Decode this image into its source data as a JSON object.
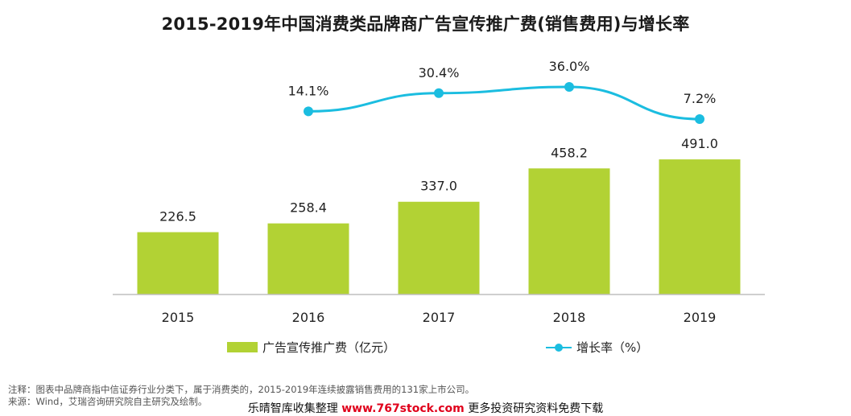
{
  "title": "2015-2019年中国消费类品牌商广告宣传推广费(销售费用)与增长率",
  "chart_data": {
    "type": "bar",
    "categories": [
      "2015",
      "2016",
      "2017",
      "2018",
      "2019"
    ],
    "series": [
      {
        "name": "广告宣传推广费（亿元）",
        "type": "bar",
        "values": [
          226.5,
          258.4,
          337.0,
          458.2,
          491.0
        ],
        "labels": [
          "226.5",
          "258.4",
          "337.0",
          "458.2",
          "491.0"
        ],
        "color": "#b2d234"
      },
      {
        "name": "增长率（%）",
        "type": "line",
        "values": [
          null,
          14.1,
          30.4,
          36.0,
          7.2
        ],
        "labels": [
          "",
          "14.1%",
          "30.4%",
          "36.0%",
          "7.2%"
        ],
        "color": "#1bbde0"
      }
    ]
  },
  "legend": {
    "bar_label": "广告宣传推广费（亿元）",
    "line_label": "增长率（%）"
  },
  "notes": {
    "note": "注释：图表中品牌商指中信证券行业分类下，属于消费类的，2015-2019年连续披露销售费用的131家上市公司。",
    "source": "来源：Wind，艾瑞咨询研究院自主研究及绘制。"
  },
  "footer": {
    "prefix": "乐晴智库收集整理",
    "url": "www.767stock.com",
    "suffix": "更多投资研究资料免费下载"
  }
}
